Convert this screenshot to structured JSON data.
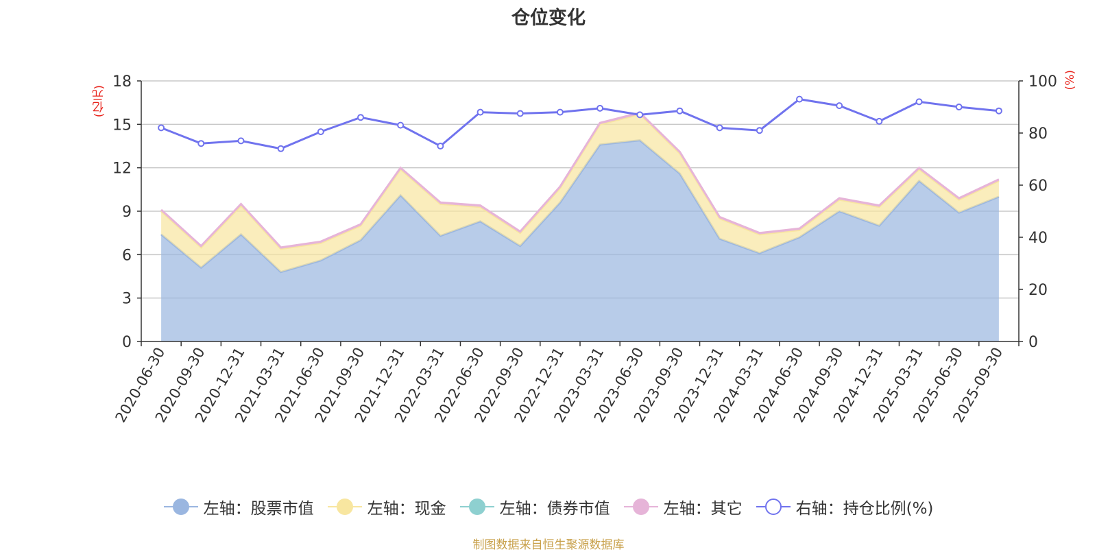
{
  "chart_data": {
    "type": "area",
    "title": "仓位变化",
    "ylabel_left": "(亿元)",
    "ylabel_right": "(%)",
    "ylim_left": [
      0,
      18
    ],
    "yticks_left": [
      0,
      3,
      6,
      9,
      12,
      15,
      18
    ],
    "ylim_right": [
      0,
      100
    ],
    "yticks_right": [
      0,
      20,
      40,
      60,
      80,
      100
    ],
    "categories": [
      "2020-06-30",
      "2020-09-30",
      "2020-12-31",
      "2021-03-31",
      "2021-06-30",
      "2021-09-30",
      "2021-12-31",
      "2022-03-31",
      "2022-06-30",
      "2022-09-30",
      "2022-12-31",
      "2023-03-31",
      "2023-06-30",
      "2023-09-30",
      "2023-12-31",
      "2024-03-31",
      "2024-06-30",
      "2024-09-30",
      "2024-12-31",
      "2025-03-31",
      "2025-06-30",
      "2025-09-30"
    ],
    "series": [
      {
        "name": "左轴：股票市值",
        "axis": "left",
        "stack": true,
        "color": "#9ab6e0",
        "values": [
          7.4,
          5.1,
          7.4,
          4.8,
          5.6,
          7.0,
          10.1,
          7.3,
          8.3,
          6.6,
          9.6,
          13.6,
          13.9,
          11.6,
          7.1,
          6.1,
          7.2,
          9.0,
          8.0,
          11.1,
          8.9,
          10.0
        ]
      },
      {
        "name": "左轴：现金",
        "axis": "left",
        "stack": true,
        "color": "#f8e6a0",
        "values": [
          1.6,
          1.4,
          2.0,
          1.6,
          1.2,
          1.0,
          1.8,
          2.2,
          1.0,
          0.9,
          1.0,
          1.4,
          1.8,
          1.4,
          1.4,
          1.3,
          0.5,
          0.8,
          1.3,
          0.8,
          0.9,
          1.1
        ]
      },
      {
        "name": "左轴：债券市值",
        "axis": "left",
        "stack": true,
        "color": "#8ed0d0",
        "values": [
          0,
          0,
          0,
          0,
          0,
          0,
          0,
          0,
          0,
          0,
          0,
          0,
          0,
          0,
          0,
          0,
          0,
          0,
          0,
          0,
          0,
          0
        ]
      },
      {
        "name": "左轴：其它",
        "axis": "left",
        "stack": true,
        "color": "#e6b4d8",
        "values": [
          0.1,
          0.1,
          0.1,
          0.1,
          0.1,
          0.1,
          0.1,
          0.1,
          0.1,
          0.1,
          0.1,
          0.1,
          0.1,
          0.1,
          0.1,
          0.1,
          0.1,
          0.1,
          0.1,
          0.1,
          0.1,
          0.1
        ]
      },
      {
        "name": "右轴：持仓比例(%)",
        "axis": "right",
        "stack": false,
        "color": "#7073ee",
        "values": [
          82,
          76,
          77,
          74,
          80.5,
          86,
          83,
          75,
          88,
          87.5,
          88,
          89.5,
          87,
          88.5,
          82,
          81,
          93,
          90.5,
          84.5,
          92,
          90,
          88.5
        ]
      }
    ],
    "legend_position": "bottom"
  },
  "source": "制图数据来自恒生聚源数据库"
}
